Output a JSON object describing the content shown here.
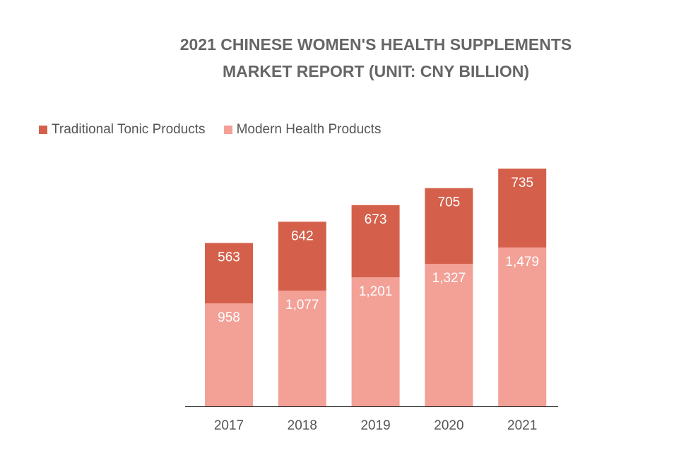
{
  "chart_data": {
    "type": "bar",
    "stacked": true,
    "title": "2021 CHINESE WOMEN'S HEALTH SUPPLEMENTS MARKET REPORT (UNIT: CNY BILLION)",
    "title_lines": [
      "2021 CHINESE WOMEN'S HEALTH SUPPLEMENTS",
      "MARKET REPORT (UNIT: CNY BILLION)"
    ],
    "categories": [
      "2017",
      "2018",
      "2019",
      "2020",
      "2021"
    ],
    "series": [
      {
        "name": "Modern Health Products",
        "values": [
          958,
          1077,
          1201,
          1327,
          1479
        ],
        "labels": [
          "958",
          "1,077",
          "1,201",
          "1,327",
          "1,479"
        ],
        "color": "#f3a097"
      },
      {
        "name": "Traditional Tonic Products",
        "values": [
          563,
          642,
          673,
          705,
          735
        ],
        "labels": [
          "563",
          "642",
          "673",
          "705",
          "735"
        ],
        "color": "#d4604b"
      }
    ],
    "legend_order": [
      "Traditional Tonic Products",
      "Modern Health Products"
    ],
    "legend_position": "top-left",
    "ylim": [
      0,
      2214
    ],
    "grid": false,
    "xlabel": "",
    "ylabel": ""
  }
}
